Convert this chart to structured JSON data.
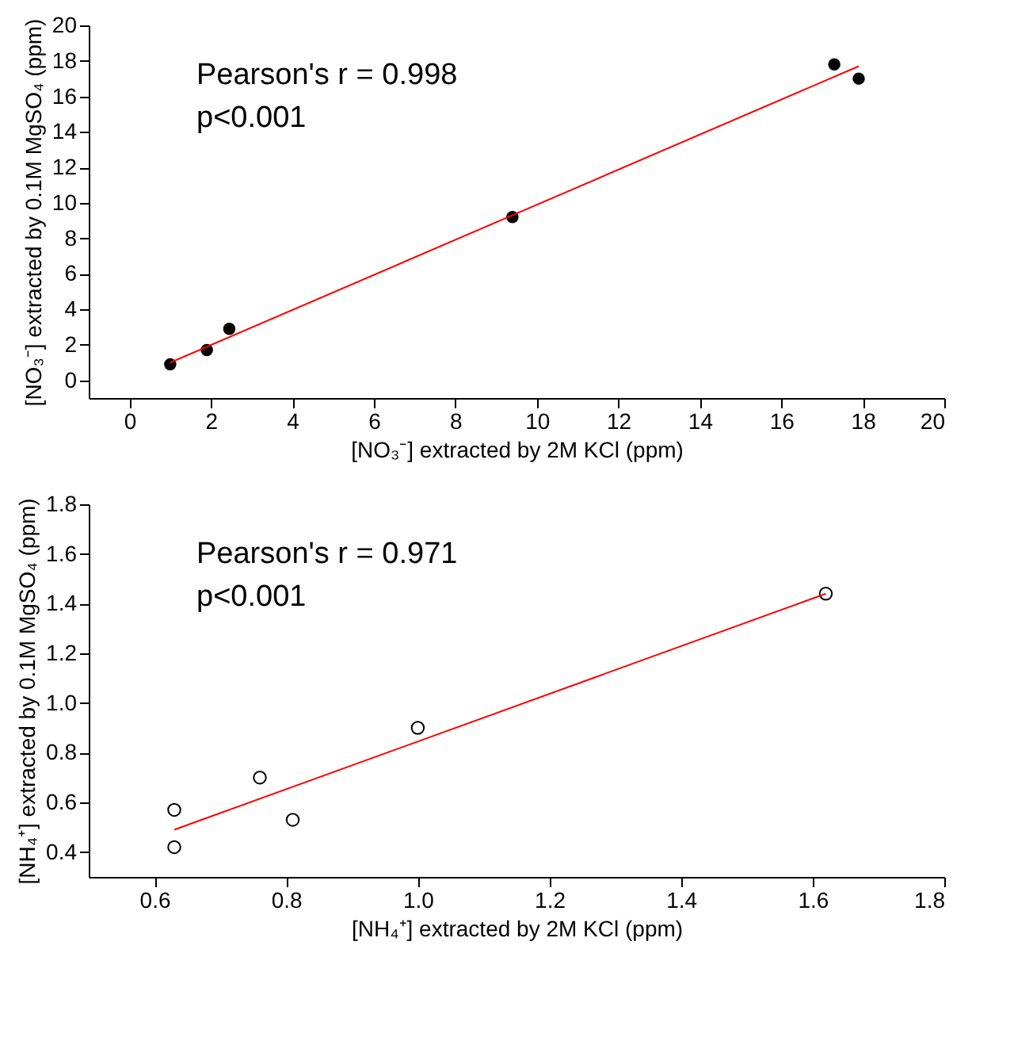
{
  "chart_data": [
    {
      "type": "scatter",
      "xlabel": "[NO₃⁻] extracted by 2M KCl (ppm)",
      "ylabel": "[NO₃⁻] extracted by 0.1M MgSO₄ (ppm)",
      "annotations": [
        "Pearson's r = 0.998",
        "p<0.001"
      ],
      "xlim": [
        -1,
        20
      ],
      "xticks": [
        0,
        2,
        4,
        6,
        8,
        10,
        12,
        14,
        16,
        18,
        20
      ],
      "ylim": [
        -1,
        20
      ],
      "yticks": [
        0,
        2,
        4,
        6,
        8,
        10,
        12,
        14,
        16,
        18,
        20
      ],
      "grid": false,
      "series": [
        {
          "marker": "circle",
          "color": "#000000",
          "x": [
            1.0,
            1.9,
            2.45,
            9.4,
            17.3,
            17.9
          ],
          "values": [
            0.9,
            1.7,
            2.9,
            9.2,
            17.8,
            17.0
          ]
        },
        {
          "type": "line",
          "color": "#ff0000",
          "x": [
            1.0,
            17.9
          ],
          "values": [
            1.0,
            17.7
          ]
        }
      ]
    },
    {
      "type": "scatter",
      "xlabel": "[NH₄⁺] extracted by 2M KCl (ppm)",
      "ylabel": "[NH₄⁺] extracted by 0.1M MgSO₄ (ppm)",
      "annotations": [
        "Pearson's r = 0.971",
        "p<0.001"
      ],
      "xlim": [
        0.5,
        1.8
      ],
      "xticks": [
        {
          "value": 0.6,
          "label": "0.6"
        },
        {
          "value": 0.8,
          "label": "0.8"
        },
        {
          "value": 1.0,
          "label": "1.0"
        },
        {
          "value": 1.2,
          "label": "1.2"
        },
        {
          "value": 1.4,
          "label": "1.4"
        },
        {
          "value": 1.6,
          "label": "1.6"
        },
        {
          "value": 1.8,
          "label": "1.8"
        }
      ],
      "ylim": [
        0.3,
        1.8
      ],
      "yticks": [
        {
          "value": 0.4,
          "label": "0.4"
        },
        {
          "value": 0.6,
          "label": "0.6"
        },
        {
          "value": 0.8,
          "label": "0.8"
        },
        {
          "value": 1.0,
          "label": "1.0"
        },
        {
          "value": 1.2,
          "label": "1.2"
        },
        {
          "value": 1.4,
          "label": "1.4"
        },
        {
          "value": 1.6,
          "label": "1.6"
        },
        {
          "value": 1.8,
          "label": "1.8"
        }
      ],
      "grid": false,
      "series": [
        {
          "marker": "circle",
          "color": "#000000",
          "x": [
            0.63,
            0.63,
            0.76,
            0.81,
            1.0,
            1.62
          ],
          "values": [
            0.57,
            0.42,
            0.7,
            0.53,
            0.9,
            1.44
          ]
        },
        {
          "type": "line",
          "color": "#ff0000",
          "x": [
            0.63,
            1.62
          ],
          "values": [
            0.49,
            1.44
          ]
        }
      ]
    }
  ]
}
